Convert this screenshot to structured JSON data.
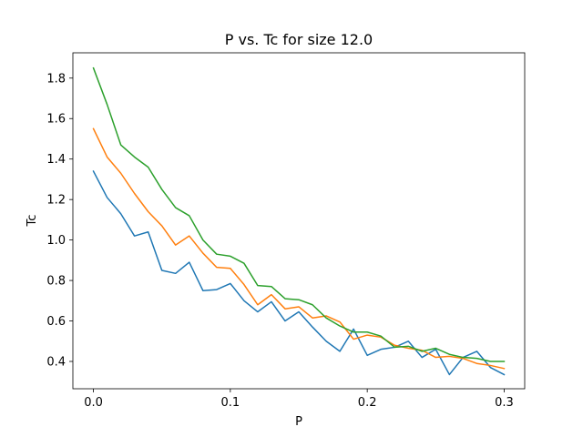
{
  "chart_data": {
    "type": "line",
    "title": "P vs. Tc for size 12.0",
    "xlabel": "P",
    "ylabel": "Tc",
    "xlim": [
      -0.015,
      0.315
    ],
    "ylim": [
      0.265,
      1.925
    ],
    "xticks": [
      0.0,
      0.1,
      0.2,
      0.3
    ],
    "xtick_labels": [
      "0.0",
      "0.1",
      "0.2",
      "0.3"
    ],
    "yticks": [
      0.4,
      0.6,
      0.8,
      1.0,
      1.2,
      1.4,
      1.6,
      1.8
    ],
    "ytick_labels": [
      "0.4",
      "0.6",
      "0.8",
      "1.0",
      "1.2",
      "1.4",
      "1.6",
      "1.8"
    ],
    "grid": false,
    "x": [
      0.0,
      0.01,
      0.02,
      0.03,
      0.04,
      0.05,
      0.06,
      0.07,
      0.08,
      0.09,
      0.1,
      0.11,
      0.12,
      0.13,
      0.14,
      0.15,
      0.16,
      0.17,
      0.18,
      0.19,
      0.2,
      0.21,
      0.22,
      0.23,
      0.24,
      0.25,
      0.26,
      0.27,
      0.28,
      0.29,
      0.3
    ],
    "series": [
      {
        "color": "#1f77b4",
        "values": [
          1.34,
          1.21,
          1.13,
          1.02,
          1.04,
          0.85,
          0.835,
          0.89,
          0.75,
          0.755,
          0.785,
          0.7,
          0.645,
          0.695,
          0.6,
          0.645,
          0.57,
          0.5,
          0.45,
          0.56,
          0.43,
          0.46,
          0.47,
          0.5,
          0.42,
          0.46,
          0.335,
          0.42,
          0.45,
          0.37,
          0.335
        ]
      },
      {
        "color": "#ff7f0e",
        "values": [
          1.55,
          1.41,
          1.33,
          1.23,
          1.14,
          1.07,
          0.975,
          1.02,
          0.935,
          0.865,
          0.86,
          0.78,
          0.68,
          0.73,
          0.66,
          0.67,
          0.615,
          0.625,
          0.595,
          0.51,
          0.53,
          0.52,
          0.48,
          0.465,
          0.455,
          0.42,
          0.425,
          0.415,
          0.39,
          0.38,
          0.365
        ]
      },
      {
        "color": "#2ca02c",
        "values": [
          1.85,
          1.67,
          1.47,
          1.41,
          1.36,
          1.25,
          1.16,
          1.12,
          1.0,
          0.93,
          0.92,
          0.885,
          0.775,
          0.77,
          0.71,
          0.705,
          0.68,
          0.615,
          0.575,
          0.545,
          0.545,
          0.525,
          0.47,
          0.475,
          0.45,
          0.465,
          0.435,
          0.42,
          0.415,
          0.4,
          0.4
        ]
      }
    ]
  }
}
